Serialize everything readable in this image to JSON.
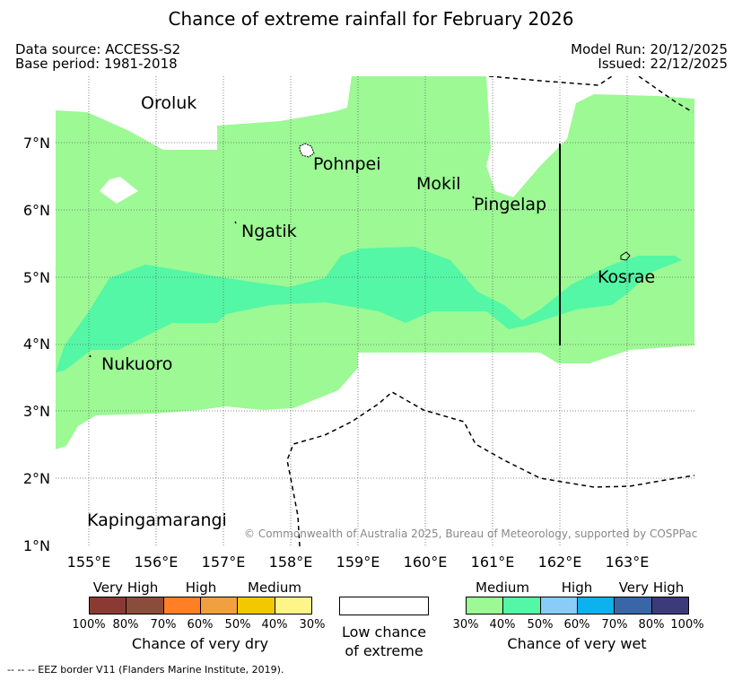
{
  "title": "Chance of extreme rainfall for February 2026",
  "header": {
    "data_source": "Data source: ACCESS-S2",
    "base_period": "Base period: 1981-2018",
    "model_run": "Model Run: 20/12/2025",
    "issued": "Issued: 22/12/2025"
  },
  "map": {
    "lat_labels": [
      "7°N",
      "6°N",
      "5°N",
      "4°N",
      "3°N",
      "2°N",
      "1°N"
    ],
    "lon_labels": [
      "155°E",
      "156°E",
      "157°E",
      "158°E",
      "159°E",
      "160°E",
      "161°E",
      "162°E",
      "163°E"
    ],
    "places": [
      "Oroluk",
      "Pohnpei",
      "Mokil",
      "Pingelap",
      "Ngatik",
      "Kosrae",
      "Nukuoro",
      "Kapingamarangi"
    ],
    "copyright": "© Commonwealth of Australia 2025, Bureau of Meteorology, supported by COSPPac"
  },
  "legend": {
    "dry": {
      "categories": [
        "Very High",
        "High",
        "Medium"
      ],
      "ticks": [
        "100%",
        "80%",
        "70%",
        "60%",
        "50%",
        "40%",
        "30%"
      ],
      "colors": [
        "#8b3a33",
        "#8a4d3c",
        "#ff7f27",
        "#f0a040",
        "#f2c800",
        "#fef58a"
      ],
      "title": "Chance of very dry"
    },
    "low": {
      "line1": "Low chance",
      "line2": "of extreme"
    },
    "wet": {
      "categories": [
        "Medium",
        "High",
        "Very High"
      ],
      "ticks": [
        "30%",
        "40%",
        "50%",
        "60%",
        "70%",
        "80%",
        "100%"
      ],
      "colors": [
        "#9cf994",
        "#53f7a6",
        "#88ccf7",
        "#0cb1ed",
        "#3866a6",
        "#3d3a7a"
      ],
      "title": "Chance of very wet"
    }
  },
  "footer": {
    "eez_note": "--  --  -- EEZ border V11 (Flanders Marine Institute, 2019)."
  }
}
